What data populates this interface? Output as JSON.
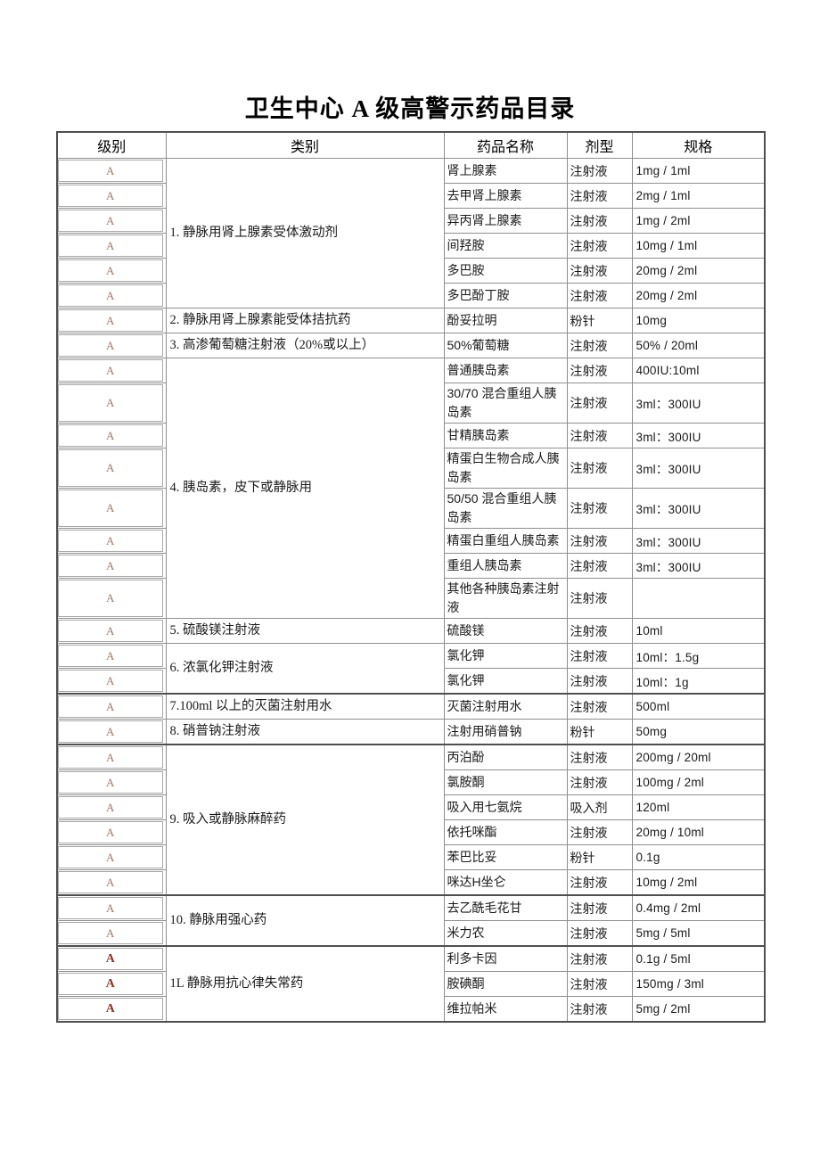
{
  "title": "卫生中心 A 级高警示药品目录",
  "table": {
    "headers": {
      "level": "级别",
      "category": "类别",
      "name": "药品名称",
      "form": "剂型",
      "spec": "规格"
    },
    "colors": {
      "level_a": "#9d7b6b",
      "level_a_bold": "#8a3426",
      "grid": "#8f8f8f",
      "grid_heavy": "#4f4f4f",
      "text": "#1a1a1a",
      "background": "#ffffff"
    },
    "groups": [
      {
        "category": "1. 静脉用肾上腺素受体激动剂",
        "rows": [
          {
            "level": "A",
            "name": "肾上腺素",
            "form": "注射液",
            "spec": "1mg / 1ml"
          },
          {
            "level": "A",
            "name": "去甲肾上腺素",
            "form": "注射液",
            "spec": "2mg / 1ml"
          },
          {
            "level": "A",
            "name": "异丙肾上腺素",
            "form": "注射液",
            "spec": "1mg / 2ml"
          },
          {
            "level": "A",
            "name": "间羟胺",
            "form": "注射液",
            "spec": "10mg / 1ml"
          },
          {
            "level": "A",
            "name": "多巴胺",
            "form": "注射液",
            "spec": "20mg / 2ml"
          },
          {
            "level": "A",
            "name": "多巴酚丁胺",
            "form": "注射液",
            "spec": "20mg / 2ml"
          }
        ]
      },
      {
        "category": "2. 静脉用肾上腺素能受体拮抗药",
        "rows": [
          {
            "level": "A",
            "name": "酚妥拉明",
            "form": "粉针",
            "spec": "10mg"
          }
        ]
      },
      {
        "category": "3. 高渗葡萄糖注射液（20%或以上）",
        "rows": [
          {
            "level": "A",
            "name": "50%葡萄糖",
            "form": "注射液",
            "spec": "50% / 20ml"
          }
        ]
      },
      {
        "category": "4. 胰岛素，皮下或静脉用",
        "rows": [
          {
            "level": "A",
            "name": "普通胰岛素",
            "form": "注射液",
            "spec": "400IU:10ml"
          },
          {
            "level": "A",
            "name": "30/70 混合重组人胰岛素",
            "form": "注射液",
            "spec": "3ml：300IU"
          },
          {
            "level": "A",
            "name": "甘精胰岛素",
            "form": "注射液",
            "spec": "3ml：300IU"
          },
          {
            "level": "A",
            "name": "精蛋白生物合成人胰岛素",
            "form": "注射液",
            "spec": "3ml：300IU"
          },
          {
            "level": "A",
            "name": "50/50 混合重组人胰岛素",
            "form": "注射液",
            "spec": "3ml：300IU"
          },
          {
            "level": "A",
            "name": "精蛋白重组人胰岛素",
            "form": "注射液",
            "spec": "3ml：300IU"
          },
          {
            "level": "A",
            "name": "重组人胰岛素",
            "form": "注射液",
            "spec": "3ml：300IU"
          },
          {
            "level": "A",
            "name": "其他各种胰岛素注射液",
            "form": "注射液",
            "spec": ""
          }
        ]
      },
      {
        "category": "5. 硫酸镁注射液",
        "rows": [
          {
            "level": "A",
            "name": "硫酸镁",
            "form": "注射液",
            "spec": "10ml"
          }
        ]
      },
      {
        "category": "6. 浓氯化钾注射液",
        "rows": [
          {
            "level": "A",
            "name": "氯化钾",
            "form": "注射液",
            "spec": "10ml：1.5g"
          },
          {
            "level": "A",
            "name": "氯化钾",
            "form": "注射液",
            "spec": "10ml：1g"
          }
        ]
      },
      {
        "category": "7.100ml 以上的灭菌注射用水",
        "heavy_top": true,
        "rows": [
          {
            "level": "A",
            "name": "灭菌注射用水",
            "form": "注射液",
            "spec": "500ml"
          }
        ]
      },
      {
        "category": "8. 硝普钠注射液",
        "rows": [
          {
            "level": "A",
            "name": "注射用硝普钠",
            "form": "粉针",
            "spec": "50mg"
          }
        ]
      },
      {
        "category": "9. 吸入或静脉麻醉药",
        "heavy_top": true,
        "rows": [
          {
            "level": "A",
            "name": "丙泊酚",
            "form": "注射液",
            "spec": "200mg / 20ml"
          },
          {
            "level": "A",
            "name": "氯胺酮",
            "form": "注射液",
            "spec": "100mg / 2ml"
          },
          {
            "level": "A",
            "name": "吸入用七氨烷",
            "form": "吸入剂",
            "spec": "120ml"
          },
          {
            "level": "A",
            "name": "依托咪酯",
            "form": "注射液",
            "spec": "20mg / 10ml"
          },
          {
            "level": "A",
            "name": "苯巴比妥",
            "form": "粉针",
            "spec": "0.1g"
          },
          {
            "level": "A",
            "name": "咪达H坐仑",
            "form": "注射液",
            "spec": "10mg / 2ml"
          }
        ]
      },
      {
        "category": "10. 静脉用强心药",
        "heavy_top": true,
        "rows": [
          {
            "level": "A",
            "name": "去乙酰毛花甘",
            "form": "注射液",
            "spec": "0.4mg / 2ml"
          },
          {
            "level": "A",
            "name": "米力农",
            "form": "注射液",
            "spec": "5mg / 5ml"
          }
        ]
      },
      {
        "category": "1L 静脉用抗心律失常药",
        "heavy_top": true,
        "level_bold": true,
        "rows": [
          {
            "level": "A",
            "name": "利多卡因",
            "form": "注射液",
            "spec": "0.1g / 5ml"
          },
          {
            "level": "A",
            "name": "胺碘酮",
            "form": "注射液",
            "spec": "150mg / 3ml"
          },
          {
            "level": "A",
            "name": "维拉帕米",
            "form": "注射液",
            "spec": "5mg / 2ml"
          }
        ]
      }
    ]
  }
}
